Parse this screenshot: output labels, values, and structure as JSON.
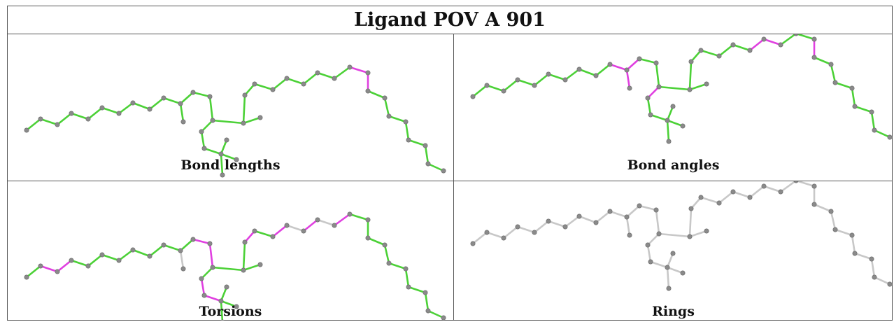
{
  "title": "Ligand POV A 901",
  "colors": {
    "ok": "#4cd137",
    "flag": "#e040e0",
    "neutral": "#c8c8c8",
    "atom": "#8a8a8a"
  },
  "panels": [
    {
      "caption": "Bond lengths",
      "default": "ok",
      "flagged": [
        [
          11,
          12
        ],
        [
          29,
          30
        ],
        [
          30,
          31
        ]
      ]
    },
    {
      "caption": "Bond angles",
      "default": "ok",
      "flagged": [
        [
          9,
          10
        ],
        [
          10,
          11
        ],
        [
          10,
          12
        ],
        [
          14,
          15
        ],
        [
          30,
          31
        ],
        [
          27,
          28
        ],
        [
          27,
          29
        ],
        [
          26,
          27
        ]
      ]
    },
    {
      "caption": "Torsions",
      "default": "ok",
      "flagged": [
        [
          1,
          2
        ],
        [
          2,
          3
        ],
        [
          12,
          13
        ],
        [
          13,
          14
        ],
        [
          15,
          16
        ],
        [
          16,
          17
        ],
        [
          22,
          23
        ],
        [
          24,
          25
        ],
        [
          26,
          27
        ],
        [
          28,
          29
        ]
      ],
      "neutral": [
        [
          10,
          11
        ],
        [
          11,
          12
        ],
        [
          27,
          28
        ],
        [
          27,
          29
        ],
        [
          26,
          27
        ],
        [
          26,
          25
        ]
      ]
    },
    {
      "caption": "Rings",
      "default": "neutral",
      "flagged": []
    }
  ]
}
